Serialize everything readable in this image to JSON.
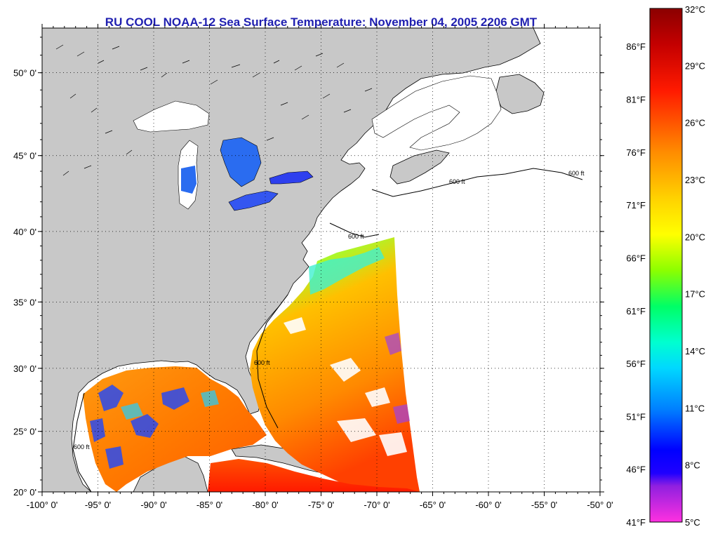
{
  "title": "RU COOL  NOAA-12  Sea Surface Temperature:  November 04, 2005 2206 GMT",
  "colors": {
    "land": "#c8c8c8",
    "ocean_no_data": "#ffffff",
    "frame": "#000000",
    "title": "#1f1fb0"
  },
  "map": {
    "lon_range": [
      -100,
      -50
    ],
    "lat_range": [
      20,
      52.5
    ],
    "lon_labels": [
      "-100° 0'",
      "-95° 0'",
      "-90° 0'",
      "-85° 0'",
      "-80° 0'",
      "-75° 0'",
      "-70° 0'",
      "-65° 0'",
      "-60° 0'",
      "-55° 0'",
      "-50° 0'"
    ],
    "lat_labels": [
      "20° 0'",
      "25° 0'",
      "30° 0'",
      "35° 0'",
      "40° 0'",
      "45° 0'",
      "50° 0'"
    ],
    "lon_values": [
      -100,
      -95,
      -90,
      -85,
      -80,
      -75,
      -70,
      -65,
      -60,
      -55,
      -50
    ],
    "lat_values": [
      20,
      25,
      30,
      35,
      40,
      45,
      50
    ],
    "grid": "dotted",
    "isobath_label": "600 ft"
  },
  "colorbar": {
    "celsius_labels": [
      "32°C",
      "29°C",
      "26°C",
      "23°C",
      "20°C",
      "17°C",
      "14°C",
      "11°C",
      "8°C",
      "5°C"
    ],
    "celsius_values": [
      32,
      29,
      26,
      23,
      20,
      17,
      14,
      11,
      8,
      5
    ],
    "fahrenheit_labels": [
      "86°F",
      "81°F",
      "76°F",
      "71°F",
      "66°F",
      "61°F",
      "56°F",
      "51°F",
      "46°F",
      "41°F"
    ],
    "fahrenheit_values": [
      86,
      81,
      76,
      71,
      66,
      61,
      56,
      51,
      46,
      41
    ],
    "range_c": [
      5,
      32
    ]
  }
}
